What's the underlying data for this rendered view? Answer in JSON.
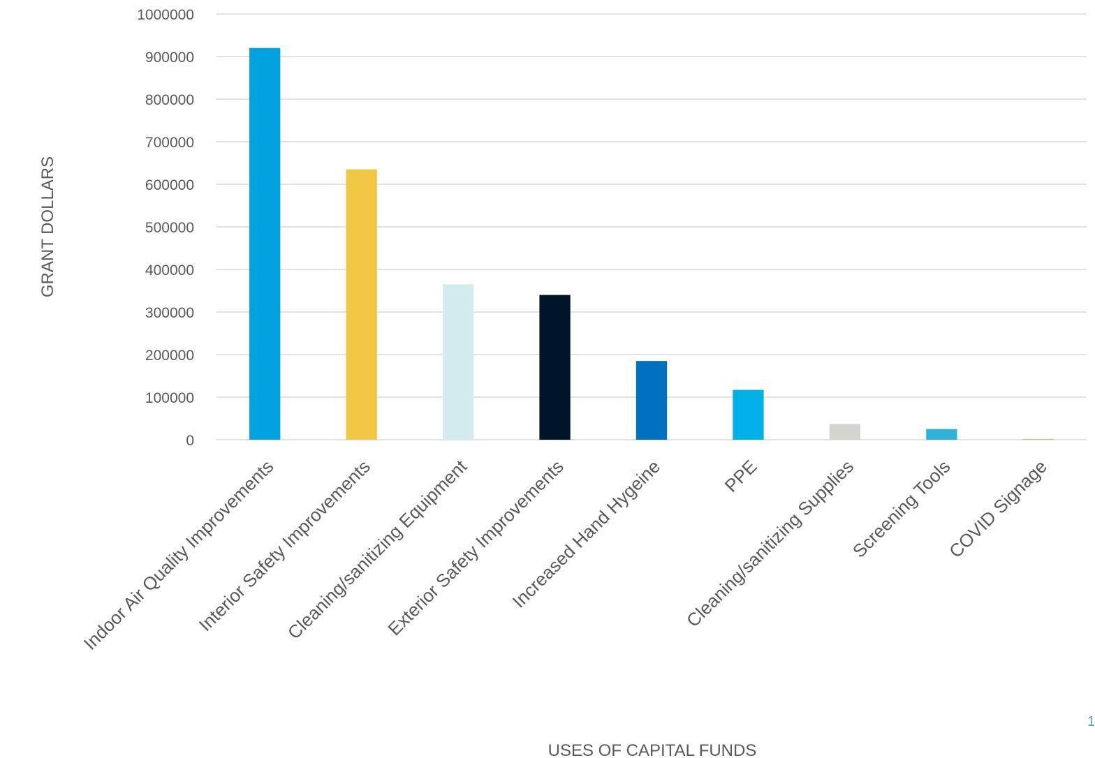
{
  "chart_data": {
    "type": "bar",
    "title": "",
    "xlabel": "USES OF CAPITAL FUNDS",
    "ylabel": "GRANT DOLLARS",
    "ylim": [
      0,
      1000000
    ],
    "yticks": [
      0,
      100000,
      200000,
      300000,
      400000,
      500000,
      600000,
      700000,
      800000,
      900000,
      1000000
    ],
    "grid": true,
    "categories": [
      "Indoor Air Quality Improvements",
      "Interior Safety Improvements",
      "Cleaning/sanitizing Equipment",
      "Exterior Safety Improvements",
      "Increased Hand Hygeine",
      "PPE",
      "Cleaning/sanitizing Supplies",
      "Screening Tools",
      "COVID Signage"
    ],
    "values": [
      920000,
      635000,
      365000,
      340000,
      185000,
      117000,
      37000,
      25000,
      2000
    ],
    "colors": [
      "#00A3DF",
      "#F2C744",
      "#D3EAEE",
      "#001529",
      "#0070C0",
      "#00B0E6",
      "#D4D4D0",
      "#2FB2D8",
      "#C9C97A"
    ]
  },
  "page": {
    "number": "1"
  }
}
